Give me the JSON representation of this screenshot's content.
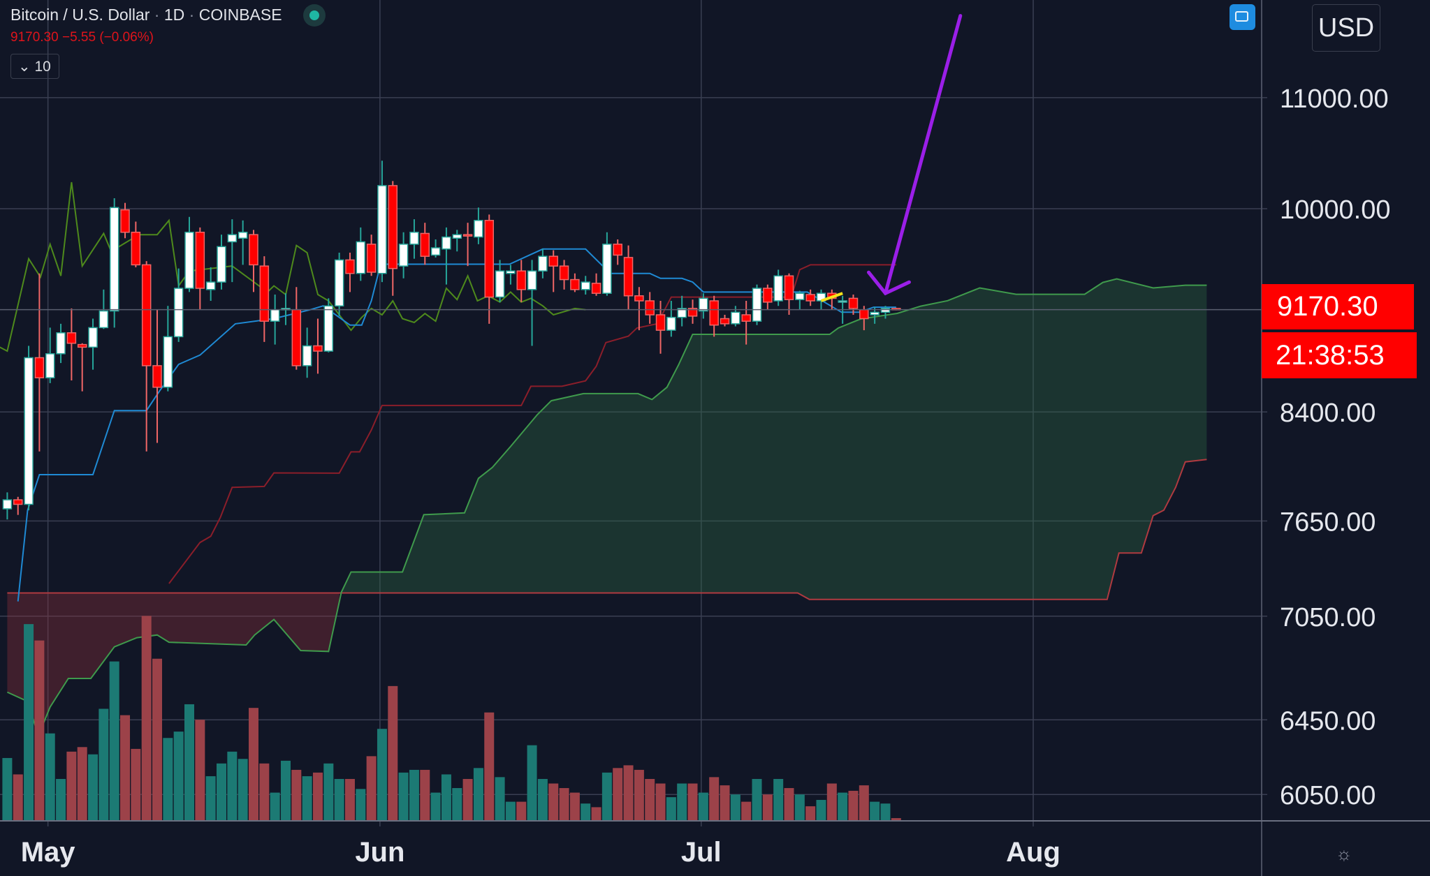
{
  "header": {
    "title": "Bitcoin / U.S. Dollar",
    "interval": "1D",
    "exchange": "COINBASE",
    "last_price": "9170.30",
    "change": "−5.55",
    "change_pct": "(−0.06%)",
    "indicator_toggle": "10"
  },
  "currency_button": "USD",
  "price_badge": "9170.30",
  "countdown_badge": "21:38:53",
  "colors": {
    "background": "#111626",
    "up": "#26a69a",
    "down": "#ff0000",
    "tenkan": "#1f8ad4",
    "kijun": "#8b1e2a",
    "chikou": "#4e8a1c",
    "span_a": "#3f9a4c",
    "span_b": "#b03a40",
    "annotation_arrow": "#9b1fe8",
    "annotation_line": "#f5e21a"
  },
  "chart_data": {
    "type": "candlestick",
    "title": "Bitcoin / U.S. Dollar · 1D · COINBASE",
    "y_scale": "log",
    "ylim": [
      5900,
      11500
    ],
    "y_ticks": [
      11000,
      10000,
      8400,
      7650,
      7050,
      6450,
      6050
    ],
    "y_tick_labels": [
      "11000.00",
      "10000.00",
      "8400.00",
      "7650.00",
      "7050.00",
      "6450.00",
      "6050.00"
    ],
    "x_ticks": [
      {
        "day": 3,
        "label": "May"
      },
      {
        "day": 34,
        "label": "Jun"
      },
      {
        "day": 64,
        "label": "Jul"
      },
      {
        "day": 95,
        "label": "Aug"
      }
    ],
    "grid": true,
    "ohlc": [
      [
        7730,
        7840,
        7660,
        7790
      ],
      [
        7790,
        7810,
        7690,
        7760
      ],
      [
        7760,
        8890,
        7720,
        8800
      ],
      [
        8800,
        9460,
        8120,
        8650
      ],
      [
        8650,
        9030,
        8610,
        8830
      ],
      [
        8830,
        9060,
        8760,
        8990
      ],
      [
        8990,
        9180,
        8630,
        8910
      ],
      [
        8900,
        8910,
        8550,
        8880
      ],
      [
        8880,
        9100,
        8710,
        9030
      ],
      [
        9030,
        9330,
        9020,
        9160
      ],
      [
        9160,
        10090,
        9030,
        10010
      ],
      [
        9990,
        10050,
        9750,
        9800
      ],
      [
        9800,
        9890,
        9510,
        9530
      ],
      [
        9530,
        9560,
        8120,
        8740
      ],
      [
        8740,
        9170,
        8180,
        8580
      ],
      [
        8580,
        9200,
        8550,
        8960
      ],
      [
        8960,
        9500,
        8920,
        9340
      ],
      [
        9340,
        9930,
        9310,
        9800
      ],
      [
        9800,
        9840,
        9170,
        9340
      ],
      [
        9330,
        9510,
        9240,
        9390
      ],
      [
        9390,
        9780,
        9330,
        9680
      ],
      [
        9720,
        9910,
        9390,
        9780
      ],
      [
        9750,
        9900,
        9530,
        9800
      ],
      [
        9780,
        9820,
        9310,
        9530
      ],
      [
        9520,
        9600,
        8920,
        9080
      ],
      [
        9080,
        9290,
        8900,
        9170
      ],
      [
        9170,
        9300,
        9050,
        9180
      ],
      [
        9170,
        9350,
        8710,
        8740
      ],
      [
        8740,
        9030,
        8650,
        8890
      ],
      [
        8890,
        9100,
        8680,
        8850
      ],
      [
        8850,
        9260,
        8840,
        9200
      ],
      [
        9200,
        9630,
        9120,
        9570
      ],
      [
        9570,
        9630,
        9310,
        9460
      ],
      [
        9460,
        9840,
        9400,
        9720
      ],
      [
        9700,
        9780,
        9440,
        9470
      ],
      [
        9460,
        10420,
        9390,
        10200
      ],
      [
        10200,
        10240,
        9280,
        9500
      ],
      [
        9520,
        9800,
        9420,
        9700
      ],
      [
        9700,
        9910,
        9580,
        9800
      ],
      [
        9790,
        9880,
        9530,
        9600
      ],
      [
        9610,
        9740,
        9590,
        9670
      ],
      [
        9660,
        9840,
        9370,
        9760
      ],
      [
        9750,
        9820,
        9640,
        9780
      ],
      [
        9780,
        9880,
        9520,
        9770
      ],
      [
        9760,
        10010,
        9700,
        9900
      ],
      [
        9900,
        9950,
        9060,
        9270
      ],
      [
        9270,
        9570,
        9230,
        9480
      ],
      [
        9460,
        9530,
        9370,
        9480
      ],
      [
        9480,
        9570,
        9230,
        9330
      ],
      [
        9330,
        9570,
        8890,
        9480
      ],
      [
        9480,
        9660,
        9420,
        9600
      ],
      [
        9600,
        9650,
        9310,
        9520
      ],
      [
        9520,
        9570,
        9330,
        9410
      ],
      [
        9410,
        9460,
        9310,
        9330
      ],
      [
        9330,
        9440,
        9290,
        9390
      ],
      [
        9380,
        9460,
        9280,
        9300
      ],
      [
        9300,
        9800,
        9280,
        9700
      ],
      [
        9700,
        9740,
        9530,
        9610
      ],
      [
        9590,
        9690,
        9170,
        9280
      ],
      [
        9280,
        9350,
        9010,
        9240
      ],
      [
        9240,
        9310,
        9060,
        9130
      ],
      [
        9130,
        9240,
        8830,
        9010
      ],
      [
        9010,
        9240,
        8960,
        9110
      ],
      [
        9110,
        9280,
        9040,
        9180
      ],
      [
        9180,
        9250,
        9060,
        9120
      ],
      [
        9160,
        9300,
        9100,
        9260
      ],
      [
        9240,
        9280,
        8960,
        9050
      ],
      [
        9100,
        9130,
        9040,
        9060
      ],
      [
        9060,
        9200,
        9040,
        9150
      ],
      [
        9130,
        9240,
        8900,
        9080
      ],
      [
        9080,
        9370,
        9050,
        9340
      ],
      [
        9340,
        9370,
        9170,
        9230
      ],
      [
        9240,
        9490,
        9200,
        9440
      ],
      [
        9440,
        9460,
        9130,
        9250
      ],
      [
        9250,
        9320,
        9170,
        9300
      ],
      [
        9290,
        9330,
        9200,
        9240
      ],
      [
        9240,
        9330,
        9170,
        9300
      ],
      [
        9300,
        9330,
        9170,
        9260
      ],
      [
        9230,
        9280,
        9060,
        9240
      ],
      [
        9260,
        9290,
        9130,
        9180
      ],
      [
        9170,
        9200,
        9010,
        9100
      ],
      [
        9130,
        9190,
        9060,
        9150
      ],
      [
        9150,
        9200,
        9100,
        9180
      ],
      [
        9180,
        9185,
        9165,
        9170.3
      ]
    ],
    "volume_relative": [
      69,
      51,
      216,
      198,
      96,
      46,
      76,
      81,
      73,
      123,
      175,
      116,
      79,
      225,
      178,
      91,
      98,
      128,
      111,
      49,
      63,
      76,
      68,
      124,
      63,
      31,
      66,
      56,
      49,
      53,
      63,
      46,
      46,
      35,
      71,
      101,
      148,
      53,
      56,
      56,
      31,
      51,
      36,
      46,
      58,
      119,
      48,
      21,
      21,
      83,
      46,
      41,
      36,
      31,
      19,
      15,
      53,
      58,
      61,
      56,
      46,
      41,
      26,
      41,
      41,
      31,
      48,
      39,
      29,
      21,
      46,
      29,
      46,
      36,
      29,
      16,
      23,
      41,
      31,
      33,
      39,
      21,
      19,
      3
    ],
    "ichimoku": {
      "tenkan": [
        [
          1,
          7140
        ],
        [
          1.9,
          7720
        ],
        [
          3,
          7960
        ],
        [
          8,
          7960
        ],
        [
          10,
          8410
        ],
        [
          13,
          8410
        ],
        [
          14.2,
          8550
        ],
        [
          16,
          8750
        ],
        [
          18,
          8820
        ],
        [
          21.3,
          9060
        ],
        [
          24.9,
          9100
        ],
        [
          28.3,
          9170
        ],
        [
          29.5,
          9200
        ],
        [
          32,
          9050
        ],
        [
          33.1,
          9050
        ],
        [
          34,
          9240
        ],
        [
          34.7,
          9480
        ],
        [
          35.3,
          9535
        ],
        [
          46.9,
          9535
        ],
        [
          50,
          9660
        ],
        [
          54,
          9660
        ],
        [
          56.3,
          9460
        ],
        [
          60,
          9460
        ],
        [
          61,
          9420
        ],
        [
          63,
          9420
        ],
        [
          64,
          9390
        ],
        [
          65,
          9310
        ],
        [
          74.7,
          9310
        ],
        [
          77.9,
          9150
        ],
        [
          79.6,
          9150
        ],
        [
          80.9,
          9190
        ],
        [
          83,
          9190
        ]
      ],
      "kijun": [
        [
          15.1,
          7250
        ],
        [
          18,
          7510
        ],
        [
          19,
          7550
        ],
        [
          19.9,
          7674
        ],
        [
          21,
          7874
        ],
        [
          24,
          7880
        ],
        [
          24.9,
          7972
        ],
        [
          31,
          7970
        ],
        [
          32.1,
          8117
        ],
        [
          32.9,
          8117
        ],
        [
          34,
          8271
        ],
        [
          35,
          8447
        ],
        [
          48,
          8447
        ],
        [
          48.9,
          8587
        ],
        [
          51.8,
          8587
        ],
        [
          54,
          8627
        ],
        [
          55,
          8736
        ],
        [
          55.9,
          8915
        ],
        [
          58,
          8964
        ],
        [
          58.8,
          9027
        ],
        [
          60.7,
          9060
        ],
        [
          62,
          9270
        ],
        [
          73.2,
          9270
        ],
        [
          74,
          9490
        ],
        [
          75,
          9530
        ],
        [
          83,
          9530
        ]
      ],
      "chikou": [
        [
          -0.7,
          8880
        ],
        [
          0,
          8850
        ],
        [
          2,
          9580
        ],
        [
          3.1,
          9430
        ],
        [
          4,
          9700
        ],
        [
          5,
          9440
        ],
        [
          6,
          10230
        ],
        [
          7,
          9520
        ],
        [
          9,
          9790
        ],
        [
          9.7,
          9640
        ],
        [
          11,
          9710
        ],
        [
          12.3,
          9780
        ],
        [
          14,
          9780
        ],
        [
          15.1,
          9900
        ],
        [
          16,
          9360
        ],
        [
          17,
          9480
        ],
        [
          21,
          9520
        ],
        [
          24.3,
          9310
        ],
        [
          24.9,
          9360
        ],
        [
          26,
          9290
        ],
        [
          27,
          9690
        ],
        [
          28,
          9630
        ],
        [
          29,
          9290
        ],
        [
          30,
          9240
        ],
        [
          32.1,
          9010
        ],
        [
          33.1,
          9110
        ],
        [
          34,
          9180
        ],
        [
          35,
          9130
        ],
        [
          36,
          9240
        ],
        [
          36.9,
          9100
        ],
        [
          38,
          9070
        ],
        [
          39,
          9140
        ],
        [
          40,
          9080
        ],
        [
          41,
          9340
        ],
        [
          42,
          9250
        ],
        [
          43,
          9440
        ],
        [
          43.9,
          9240
        ],
        [
          44.9,
          9280
        ],
        [
          46,
          9230
        ],
        [
          47,
          9310
        ],
        [
          48,
          9230
        ],
        [
          48.9,
          9260
        ],
        [
          50,
          9200
        ],
        [
          51,
          9130
        ],
        [
          53,
          9180
        ],
        [
          54,
          9170
        ]
      ],
      "span_a": [
        [
          0,
          6605
        ],
        [
          1.9,
          6553
        ],
        [
          2.9,
          6362
        ],
        [
          4,
          6521
        ],
        [
          5.7,
          6683
        ],
        [
          7.8,
          6683
        ],
        [
          10,
          6867
        ],
        [
          12.1,
          6921
        ],
        [
          14,
          6937
        ],
        [
          15.1,
          6894
        ],
        [
          22.3,
          6878
        ],
        [
          23.1,
          6937
        ],
        [
          24.9,
          7030
        ],
        [
          27.4,
          6845
        ],
        [
          30,
          6840
        ],
        [
          31.2,
          7197
        ],
        [
          32.1,
          7322
        ],
        [
          36.9,
          7322
        ],
        [
          38.9,
          7691
        ],
        [
          42.7,
          7703
        ],
        [
          44,
          7935
        ],
        [
          45.3,
          8010
        ],
        [
          47,
          8155
        ],
        [
          49.5,
          8381
        ],
        [
          50.8,
          8481
        ],
        [
          53.8,
          8533
        ],
        [
          58.9,
          8533
        ],
        [
          60.2,
          8490
        ],
        [
          61.6,
          8580
        ],
        [
          62.7,
          8749
        ],
        [
          64,
          8978
        ],
        [
          76.8,
          8978
        ],
        [
          77.6,
          9027
        ],
        [
          79.7,
          9098
        ],
        [
          83.1,
          9141
        ],
        [
          85.3,
          9198
        ],
        [
          87.8,
          9241
        ],
        [
          90.8,
          9343
        ],
        [
          94.2,
          9292
        ],
        [
          100.6,
          9292
        ],
        [
          102.3,
          9387
        ],
        [
          103.6,
          9416
        ],
        [
          107,
          9343
        ],
        [
          110,
          9365
        ],
        [
          112,
          9365
        ]
      ],
      "span_b": [
        [
          0,
          7192
        ],
        [
          73.8,
          7192
        ],
        [
          74.9,
          7152
        ],
        [
          102.7,
          7152
        ],
        [
          103.8,
          7443
        ],
        [
          105.9,
          7443
        ],
        [
          107,
          7685
        ],
        [
          108,
          7721
        ],
        [
          109.1,
          7874
        ],
        [
          110,
          8048
        ],
        [
          112,
          8064
        ]
      ]
    },
    "annotations": {
      "arrow": {
        "from": [
          89,
          11800
        ],
        "to": [
          82,
          9300
        ]
      },
      "line": {
        "from": [
          76,
          9240
        ],
        "to": [
          78,
          9300
        ]
      }
    }
  }
}
